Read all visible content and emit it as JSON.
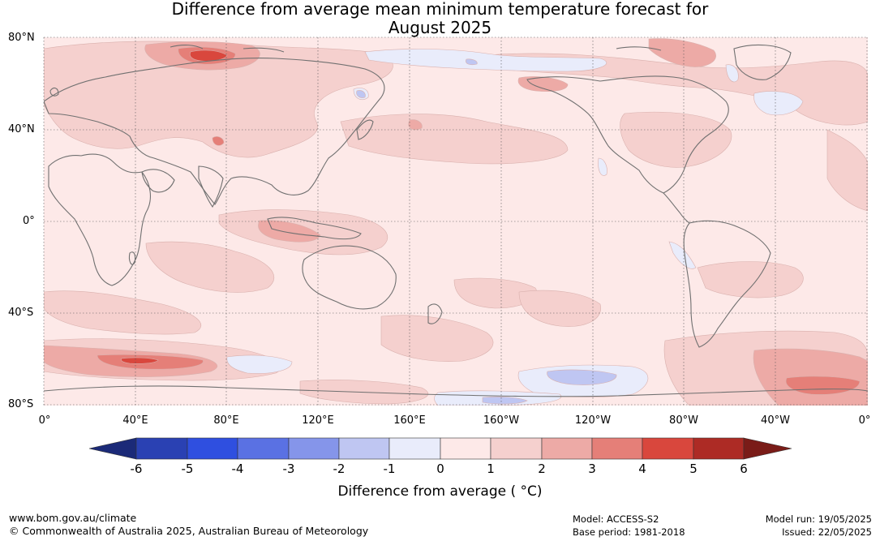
{
  "title_line1": "Difference from average mean minimum temperature forecast for",
  "title_line2": "August 2025",
  "lat_labels": [
    "80°N",
    "40°N",
    "0°",
    "40°S",
    "80°S"
  ],
  "lon_labels": [
    "0°",
    "40°E",
    "80°E",
    "120°E",
    "160°E",
    "160°W",
    "120°W",
    "80°W",
    "40°W",
    "0°"
  ],
  "colorbar": {
    "ticks": [
      "-6",
      "-5",
      "-4",
      "-3",
      "-2",
      "-1",
      "0",
      "1",
      "2",
      "3",
      "4",
      "5",
      "6"
    ],
    "colors": [
      "#1b2a78",
      "#2a41b3",
      "#2f4fe0",
      "#5a71e3",
      "#8595ea",
      "#bfc6f2",
      "#e9ecfb",
      "#fde9e8",
      "#f5d0ce",
      "#edaaa6",
      "#e57f78",
      "#d9473d",
      "#ad2b25",
      "#7a1c18"
    ],
    "label": "Difference from average ( °C)"
  },
  "footer": {
    "left1": "www.bom.gov.au/climate",
    "left2": "© Commonwealth of Australia 2025, Australian Bureau of Meteorology",
    "model": "Model: ACCESS-S2",
    "base_period": "Base period: 1981-2018",
    "model_run": "Model run: 19/05/2025",
    "issued": "Issued: 22/05/2025"
  }
}
